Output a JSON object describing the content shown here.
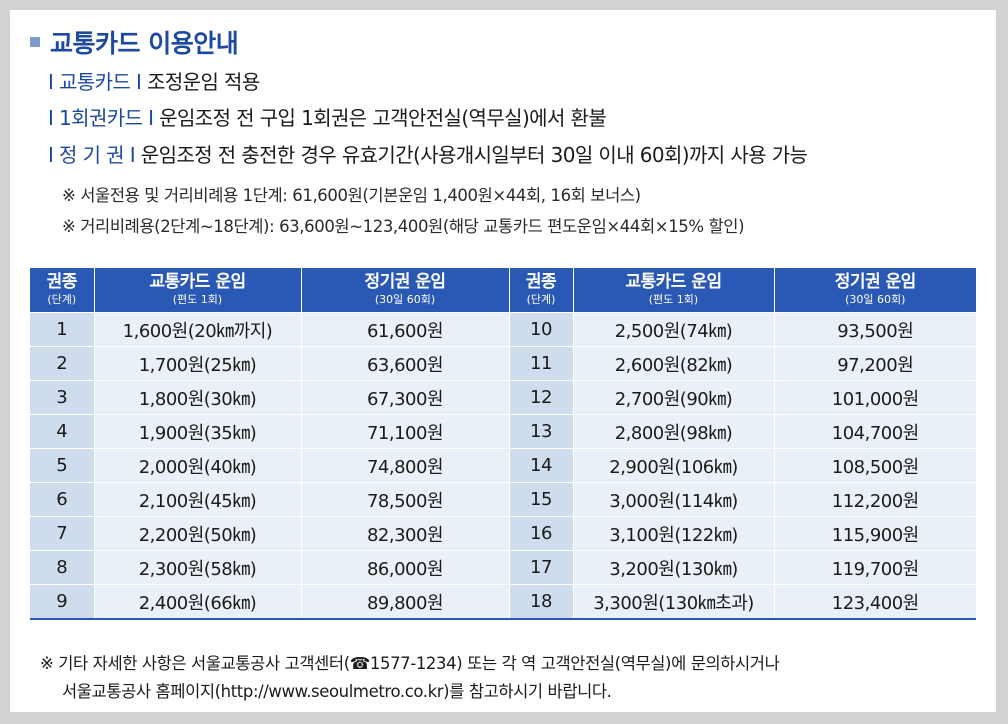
{
  "title": "교통카드 이용안내",
  "info": [
    {
      "label": "I 교통카드 I",
      "text": "조정운임 적용"
    },
    {
      "label": "I 1회권카드 I",
      "text": "운임조정 전 구입 1회권은 고객안전실(역무실)에서 환불"
    },
    {
      "label": "I 정  기  권 I",
      "text": "운임조정 전 충전한 경우 유효기간(사용개시일부터 30일 이내 60회)까지 사용 가능"
    }
  ],
  "notes": [
    "※ 서울전용 및 거리비례용 1단계: 61,600원(기본운임 1,400원×44회, 16회 보너스)",
    "※ 거리비례용(2단계~18단계): 63,600원~123,400원(해당 교통카드 편도운임×44회×15% 할인)"
  ],
  "table": {
    "headers": [
      {
        "main": "권종",
        "sub": "(단계)"
      },
      {
        "main": "교통카드 운임",
        "sub": "(편도 1회)"
      },
      {
        "main": "정기권 운임",
        "sub": "(30일 60회)"
      },
      {
        "main": "권종",
        "sub": "(단계)"
      },
      {
        "main": "교통카드 운임",
        "sub": "(편도 1회)"
      },
      {
        "main": "정기권 운임",
        "sub": "(30일 60회)"
      }
    ],
    "rows": [
      [
        "1",
        "1,600원(20㎞까지)",
        "61,600원",
        "10",
        "2,500원(74㎞)",
        "93,500원"
      ],
      [
        "2",
        "1,700원(25㎞)",
        "63,600원",
        "11",
        "2,600원(82㎞)",
        "97,200원"
      ],
      [
        "3",
        "1,800원(30㎞)",
        "67,300원",
        "12",
        "2,700원(90㎞)",
        "101,000원"
      ],
      [
        "4",
        "1,900원(35㎞)",
        "71,100원",
        "13",
        "2,800원(98㎞)",
        "104,700원"
      ],
      [
        "5",
        "2,000원(40㎞)",
        "74,800원",
        "14",
        "2,900원(106㎞)",
        "108,500원"
      ],
      [
        "6",
        "2,100원(45㎞)",
        "78,500원",
        "15",
        "3,000원(114㎞)",
        "112,200원"
      ],
      [
        "7",
        "2,200원(50㎞)",
        "82,300원",
        "16",
        "3,100원(122㎞)",
        "115,900원"
      ],
      [
        "8",
        "2,300원(58㎞)",
        "86,000원",
        "17",
        "3,200원(130㎞)",
        "119,700원"
      ],
      [
        "9",
        "2,400원(66㎞)",
        "89,800원",
        "18",
        "3,300원(130㎞초과)",
        "123,400원"
      ]
    ]
  },
  "footer": [
    "※ 기타 자세한 사항은 서울교통공사 고객센터(☎1577-1234) 또는 각 역 고객안전실(역무실)에 문의하시거나",
    "서울교통공사 홈페이지(http://www.seoulmetro.co.kr)를 참고하시기 바랍니다."
  ],
  "colors": {
    "accent": "#1d4aa0",
    "header_bg": "#2a58b5",
    "grade_bg": "#cfdcee",
    "cell_bg": "#eaf0f8"
  }
}
